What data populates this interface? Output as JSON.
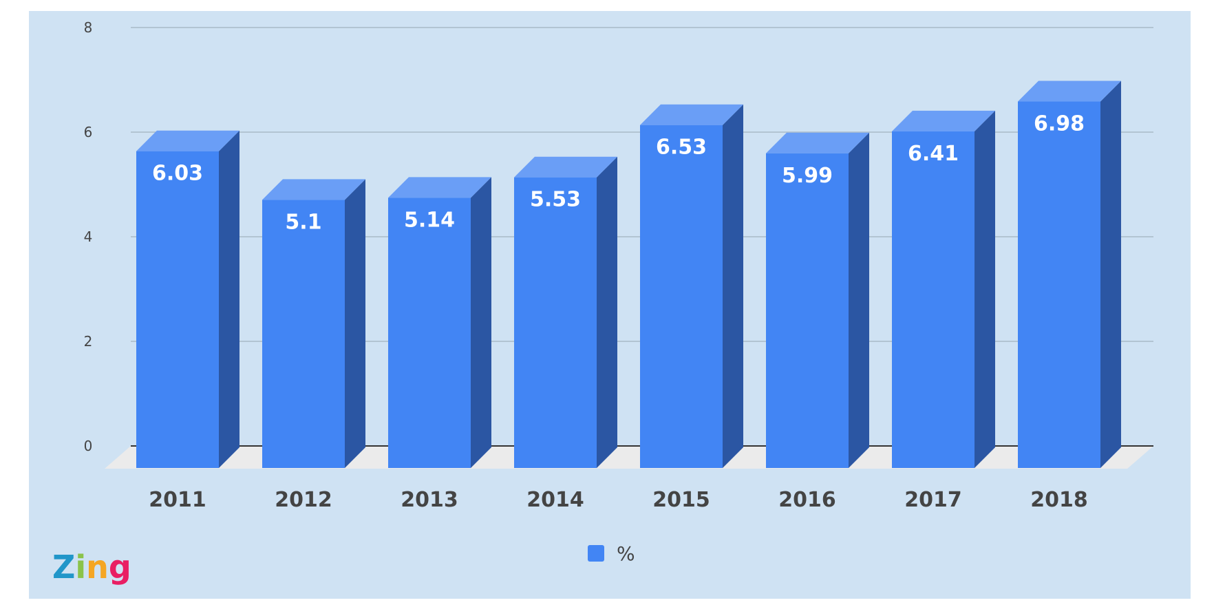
{
  "chart_data": {
    "type": "bar",
    "categories": [
      "2011",
      "2012",
      "2013",
      "2014",
      "2015",
      "2016",
      "2017",
      "2018"
    ],
    "series": [
      {
        "name": "%",
        "values": [
          6.03,
          5.1,
          5.14,
          5.53,
          6.53,
          5.99,
          6.41,
          6.98
        ]
      }
    ],
    "title": "",
    "xlabel": "",
    "ylabel": "",
    "ylim": [
      0,
      8
    ],
    "yticks": [
      "0",
      "2",
      "4",
      "6",
      "8"
    ],
    "grid": true,
    "legend": "bottom",
    "three_d": true
  },
  "colors": {
    "background": "#cfe2f3",
    "bar_front": "#4285f4",
    "bar_top": "#6a9ef6",
    "bar_side": "#2b56a3",
    "floor": "#ebebeb",
    "gridline": "#a9b9c7",
    "baseline": "#333333"
  },
  "logo": {
    "text": "Zing",
    "letter_colors": [
      "#2196c9",
      "#8bc34a",
      "#f5a623",
      "#e91e63"
    ]
  }
}
